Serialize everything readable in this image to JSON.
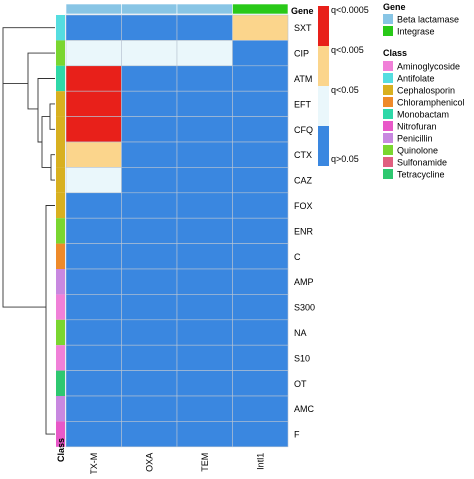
{
  "chart_data": {
    "type": "heatmap",
    "columns": [
      "CTX-M",
      "OXA",
      "TEM",
      "Intl1"
    ],
    "rows": [
      "SXT",
      "CIP",
      "ATM",
      "EFT",
      "CFQ",
      "CTX",
      "CAZ",
      "FOX",
      "ENR",
      "C",
      "AMP",
      "S300",
      "NA",
      "S10",
      "OT",
      "AMC",
      "F"
    ],
    "values": [
      [
        "q>0.05",
        "q>0.05",
        "q>0.05",
        "q<0.005"
      ],
      [
        "q<0.05",
        "q<0.05",
        "q<0.05",
        "q>0.05"
      ],
      [
        "q<0.0005",
        "q>0.05",
        "q>0.05",
        "q>0.05"
      ],
      [
        "q<0.0005",
        "q>0.05",
        "q>0.05",
        "q>0.05"
      ],
      [
        "q<0.0005",
        "q>0.05",
        "q>0.05",
        "q>0.05"
      ],
      [
        "q<0.005",
        "q>0.05",
        "q>0.05",
        "q>0.05"
      ],
      [
        "q<0.05",
        "q>0.05",
        "q>0.05",
        "q>0.05"
      ],
      [
        "q>0.05",
        "q>0.05",
        "q>0.05",
        "q>0.05"
      ],
      [
        "q>0.05",
        "q>0.05",
        "q>0.05",
        "q>0.05"
      ],
      [
        "q>0.05",
        "q>0.05",
        "q>0.05",
        "q>0.05"
      ],
      [
        "q>0.05",
        "q>0.05",
        "q>0.05",
        "q>0.05"
      ],
      [
        "q>0.05",
        "q>0.05",
        "q>0.05",
        "q>0.05"
      ],
      [
        "q>0.05",
        "q>0.05",
        "q>0.05",
        "q>0.05"
      ],
      [
        "q>0.05",
        "q>0.05",
        "q>0.05",
        "q>0.05"
      ],
      [
        "q>0.05",
        "q>0.05",
        "q>0.05",
        "q>0.05"
      ],
      [
        "q>0.05",
        "q>0.05",
        "q>0.05",
        "q>0.05"
      ],
      [
        "q>0.05",
        "q>0.05",
        "q>0.05",
        "q>0.05"
      ]
    ],
    "scale": [
      {
        "label": "q<0.0005",
        "color": "#e8201a"
      },
      {
        "label": "q<0.005",
        "color": "#fbd58c"
      },
      {
        "label": "q<0.05",
        "color": "#eaf7fb"
      },
      {
        "label": "q>0.05",
        "color": "#3a87e0"
      }
    ],
    "column_annotation": {
      "title": "Gene",
      "values": [
        "Beta lactamase",
        "Beta lactamase",
        "Beta lactamase",
        "Integrase"
      ]
    },
    "row_annotation": {
      "title": "Class",
      "values": [
        "Antifolate",
        "Quinolone",
        "Monobactam",
        "Cephalosporin",
        "Cephalosporin",
        "Cephalosporin",
        "Cephalosporin",
        "Cephalosporin",
        "Quinolone",
        "Chloramphenicol",
        "Penicillin",
        "Aminoglycoside",
        "Quinolone",
        "Aminoglycoside",
        "Tetracycline",
        "Penicillin",
        "Nitrofuran"
      ]
    },
    "legend_gene": {
      "title": "Gene",
      "entries": [
        {
          "label": "Beta lactamase",
          "color": "#88c5e5"
        },
        {
          "label": "Integrase",
          "color": "#29c918"
        }
      ]
    },
    "legend_class": {
      "title": "Class",
      "entries": [
        {
          "label": "Aminoglycoside",
          "color": "#f080d8"
        },
        {
          "label": "Antifolate",
          "color": "#55dde0"
        },
        {
          "label": "Cephalosporin",
          "color": "#d8b020"
        },
        {
          "label": "Chloramphenicol",
          "color": "#ee8a2a"
        },
        {
          "label": "Monobactam",
          "color": "#2ed8a8"
        },
        {
          "label": "Nitrofuran",
          "color": "#e858c8"
        },
        {
          "label": "Penicillin",
          "color": "#c888e0"
        },
        {
          "label": "Quinolone",
          "color": "#7ad630"
        },
        {
          "label": "Sulfonamide",
          "color": "#e06080"
        },
        {
          "label": "Tetracycline",
          "color": "#2ec870"
        }
      ]
    },
    "row_dendrogram": true
  }
}
